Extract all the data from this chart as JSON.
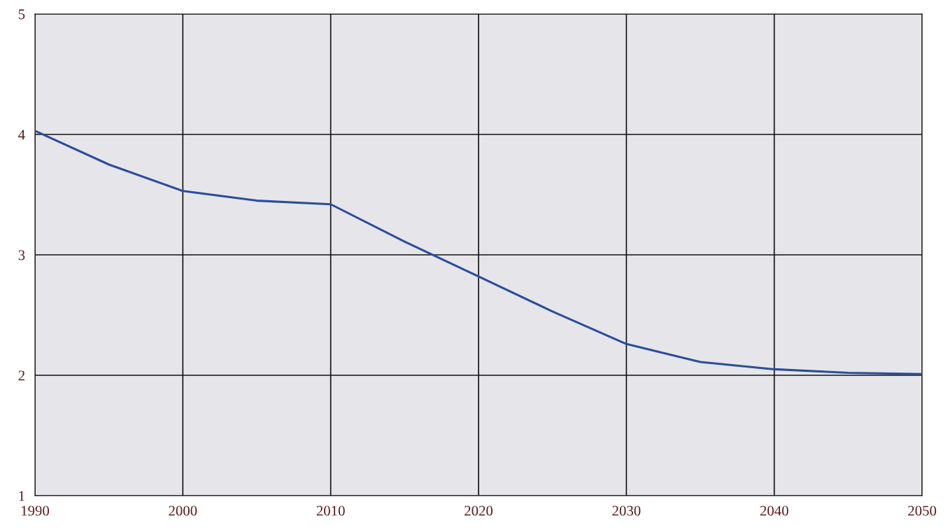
{
  "chart_data": {
    "type": "line",
    "x": [
      1990,
      1995,
      2000,
      2005,
      2010,
      2015,
      2020,
      2025,
      2030,
      2035,
      2040,
      2045,
      2050
    ],
    "series": [
      {
        "color": "#2b4d9b",
        "values": [
          4.03,
          3.75,
          3.53,
          3.45,
          3.42,
          3.11,
          2.82,
          2.53,
          2.26,
          2.11,
          2.05,
          2.02,
          2.01
        ]
      }
    ],
    "xlim": [
      1990,
      2050
    ],
    "xticks": [
      1990,
      2000,
      2010,
      2020,
      2030,
      2040,
      2050
    ],
    "ylim": [
      1,
      5
    ],
    "yticks": [
      1,
      2,
      3,
      4,
      5
    ],
    "grid": true,
    "marker": "none",
    "line_style": "solid"
  }
}
